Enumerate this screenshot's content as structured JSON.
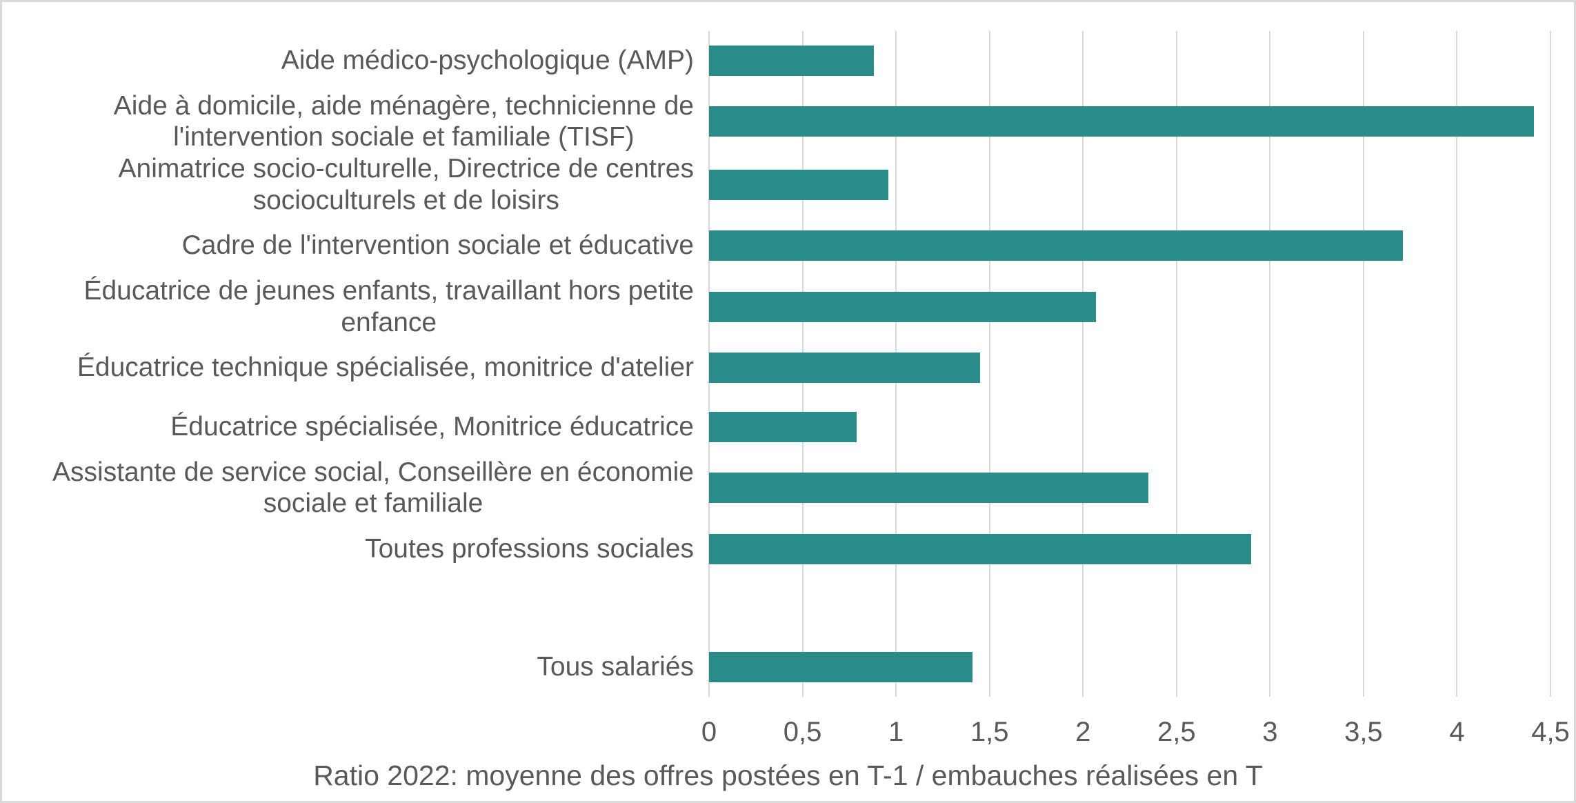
{
  "chart_data": {
    "type": "bar",
    "orientation": "horizontal",
    "title": "Ratio 2022: moyenne des offres postées en T-1 / embauches réalisées en T",
    "categories": [
      "Aide médico-psychologique (AMP)",
      "Aide à domicile, aide ménagère, technicienne de\nl'intervention sociale et familiale (TISF)",
      "Animatrice socio-culturelle, Directrice de centres\nsocioculturels et de loisirs",
      "Cadre de l'intervention sociale et éducative",
      "Éducatrice de jeunes enfants, travaillant hors petite\nenfance",
      "Éducatrice technique spécialisée, monitrice d'atelier",
      "Éducatrice spécialisée, Monitrice éducatrice",
      "Assistante de service social, Conseillère en économie\nsociale et familiale",
      "Toutes professions sociales",
      "",
      "Tous salariés"
    ],
    "values": [
      0.88,
      4.41,
      0.96,
      3.71,
      2.07,
      1.45,
      0.79,
      2.35,
      2.9,
      null,
      1.41
    ],
    "xlabel": "",
    "ylabel": "",
    "xlim": [
      0,
      4.5
    ],
    "x_ticks": [
      0,
      0.5,
      1,
      1.5,
      2,
      2.5,
      3,
      3.5,
      4,
      4.5
    ],
    "x_tick_labels": [
      "0",
      "0,5",
      "1",
      "1,5",
      "2",
      "2,5",
      "3",
      "3,5",
      "4",
      "4,5"
    ],
    "grid": true,
    "legend": false,
    "bar_color": "#2a8c89",
    "gridline_color": "#d9d9d9",
    "text_color": "#595959",
    "frame_border_color": "#d9d9d9"
  }
}
